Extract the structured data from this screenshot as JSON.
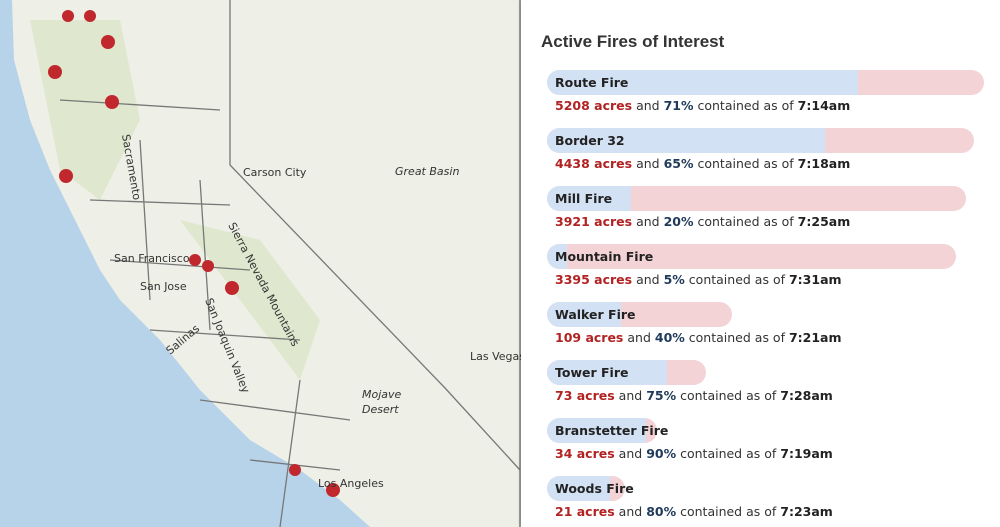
{
  "panel": {
    "title": "Active Fires of Interest",
    "connector": "and",
    "suffix": "contained as of",
    "fires": [
      {
        "name": "Route Fire",
        "acres": 5208,
        "acres_label": "5208 acres",
        "contained": 71,
        "contained_label": "71%",
        "time": "7:14am"
      },
      {
        "name": "Border 32",
        "acres": 4438,
        "acres_label": "4438 acres",
        "contained": 65,
        "contained_label": "65%",
        "time": "7:18am"
      },
      {
        "name": "Mill Fire",
        "acres": 3921,
        "acres_label": "3921 acres",
        "contained": 20,
        "contained_label": "20%",
        "time": "7:25am"
      },
      {
        "name": "Mountain Fire",
        "acres": 3395,
        "acres_label": "3395 acres",
        "contained": 5,
        "contained_label": "5%",
        "time": "7:31am"
      },
      {
        "name": "Walker Fire",
        "acres": 109,
        "acres_label": "109 acres",
        "contained": 40,
        "contained_label": "40%",
        "time": "7:21am"
      },
      {
        "name": "Tower Fire",
        "acres": 73,
        "acres_label": "73 acres",
        "contained": 75,
        "contained_label": "75%",
        "time": "7:28am"
      },
      {
        "name": "Branstetter Fire",
        "acres": 34,
        "acres_label": "34 acres",
        "contained": 90,
        "contained_label": "90%",
        "time": "7:19am"
      },
      {
        "name": "Woods Fire",
        "acres": 21,
        "acres_label": "21 acres",
        "contained": 80,
        "contained_label": "80%",
        "time": "7:23am"
      }
    ]
  },
  "map": {
    "labels": [
      "Carson City",
      "Great Basin",
      "San Francisco",
      "San Jose",
      "Las Vegas",
      "Mojave",
      "Desert",
      "Los Angeles",
      "Sierra Nevada Mountains",
      "San Joaquin Valley",
      "Sacramento",
      "Salinas"
    ]
  }
}
